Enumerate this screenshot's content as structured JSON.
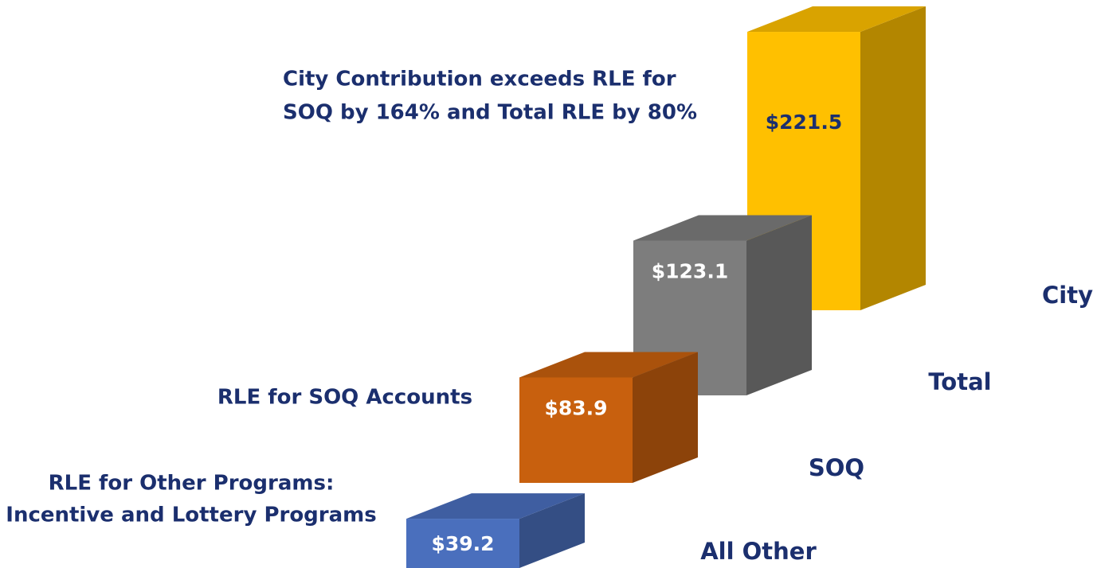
{
  "chart_data": {
    "type": "bar",
    "categories": [
      "All Other",
      "SOQ",
      "Total",
      "City"
    ],
    "values": [
      39.2,
      83.9,
      123.1,
      221.5
    ],
    "value_labels": [
      "$39.2",
      "$83.9",
      "$123.1",
      "$221.5"
    ],
    "colors": [
      "#4a6fbd",
      "#c8600e",
      "#7d7d7d",
      "#ffc000"
    ],
    "value_label_colors": [
      "#ffffff",
      "#ffffff",
      "#ffffff",
      "#1b2f6e"
    ],
    "annotations": [
      [
        "RLE for Other Programs:",
        "Incentive and Lottery Programs"
      ],
      [
        "RLE for SOQ Accounts"
      ],
      [
        "City Contribution exceeds RLE for",
        "SOQ by 164% and Total RLE by 80%"
      ]
    ]
  }
}
